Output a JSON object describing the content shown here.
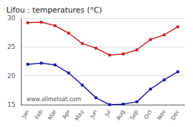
{
  "chart_data": {
    "type": "line",
    "title": "Lifou : temperatures (°C)",
    "categories": [
      "Jan",
      "Feb",
      "Mar",
      "Apr",
      "May",
      "Jun",
      "Jul",
      "Aug",
      "Sep",
      "Oct",
      "Nov",
      "Dec"
    ],
    "series": [
      {
        "color": "#cc2222",
        "marker": "square",
        "values": [
          29.2,
          29.3,
          28.7,
          27.4,
          25.6,
          24.8,
          23.6,
          23.8,
          24.5,
          26.3,
          27.1,
          28.5
        ]
      },
      {
        "color": "#1a1aaa",
        "marker": "square",
        "values": [
          22.0,
          22.2,
          21.9,
          20.5,
          18.4,
          16.2,
          15.0,
          15.1,
          15.5,
          17.7,
          19.3,
          20.7
        ]
      }
    ],
    "ylim": [
      15,
      30
    ],
    "yticks": [
      15,
      20,
      25,
      30
    ],
    "grid": true,
    "annotations": [
      "www.allmetsat.com"
    ]
  }
}
